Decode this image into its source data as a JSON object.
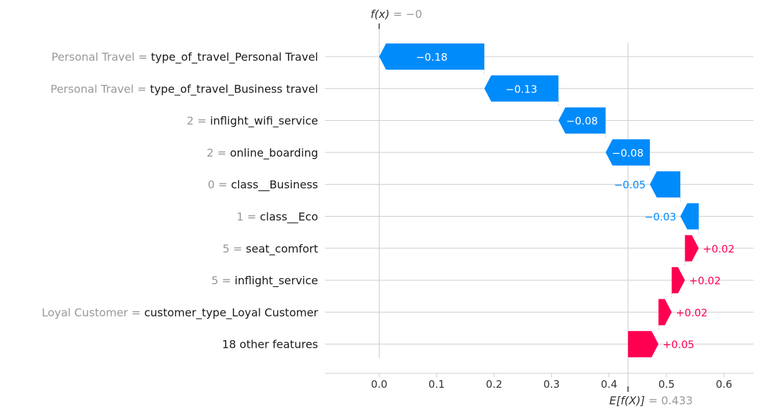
{
  "chart_data": {
    "type": "waterfall",
    "fx_label": {
      "prefix": "f(x)",
      "eq": " = ",
      "value": "−0"
    },
    "efx_label": {
      "prefix": "E[f(X)]",
      "eq": " = ",
      "value": "0.433"
    },
    "base_value": 0.433,
    "final_value": 0.0,
    "xlim": [
      -0.095,
      0.65
    ],
    "xticks": [
      {
        "v": 0.0,
        "label": "0.0"
      },
      {
        "v": 0.1,
        "label": "0.1"
      },
      {
        "v": 0.2,
        "label": "0.2"
      },
      {
        "v": 0.3,
        "label": "0.3"
      },
      {
        "v": 0.4,
        "label": "0.4"
      },
      {
        "v": 0.5,
        "label": "0.5"
      },
      {
        "v": 0.6,
        "label": "0.6"
      }
    ],
    "features": [
      {
        "value": "Personal Travel",
        "name": "type_of_travel_Personal Travel",
        "start": 0.183,
        "end": 0.0,
        "label": "−0.18"
      },
      {
        "value": "Personal Travel",
        "name": "type_of_travel_Business travel",
        "start": 0.312,
        "end": 0.183,
        "label": "−0.13"
      },
      {
        "value": "2",
        "name": "inflight_wifi_service",
        "start": 0.394,
        "end": 0.312,
        "label": "−0.08"
      },
      {
        "value": "2",
        "name": "online_boarding",
        "start": 0.471,
        "end": 0.394,
        "label": "−0.08"
      },
      {
        "value": "0",
        "name": "class__Business",
        "start": 0.524,
        "end": 0.471,
        "label": "−0.05"
      },
      {
        "value": "1",
        "name": "class__Eco",
        "start": 0.556,
        "end": 0.524,
        "label": "−0.03"
      },
      {
        "value": "5",
        "name": "seat_comfort",
        "start": 0.532,
        "end": 0.556,
        "label": "+0.02"
      },
      {
        "value": "5",
        "name": "inflight_service",
        "start": 0.509,
        "end": 0.532,
        "label": "+0.02"
      },
      {
        "value": "Loyal Customer",
        "name": "customer_type_Loyal Customer",
        "start": 0.486,
        "end": 0.509,
        "label": "+0.02"
      },
      {
        "value": "",
        "name": "18 other features",
        "start": 0.433,
        "end": 0.486,
        "label": "+0.05"
      }
    ],
    "colors": {
      "negative": "#008bfb",
      "positive": "#ff0051",
      "grid": "#cccccc",
      "label_grey": "#999999"
    }
  }
}
